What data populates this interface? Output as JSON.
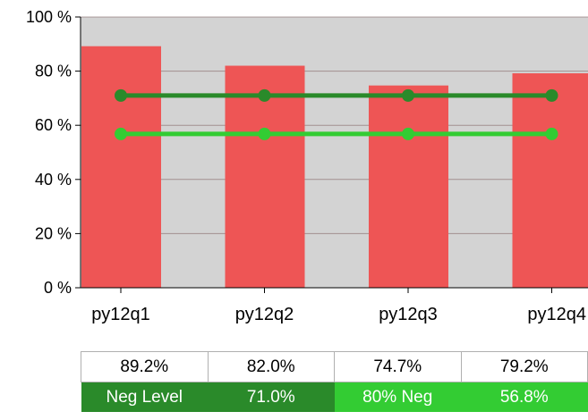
{
  "chart_data": {
    "type": "bar",
    "categories": [
      "py12q1",
      "py12q2",
      "py12q3",
      "py12q4"
    ],
    "values": [
      89.2,
      82.0,
      74.7,
      79.2
    ],
    "ylim": [
      0,
      100
    ],
    "yticks": [
      "0 %",
      "20 %",
      "40 %",
      "60 %",
      "80 %",
      "100 %"
    ],
    "grid": true,
    "lines": [
      {
        "name": "Neg Level",
        "value": 71.0,
        "color": "#2a8a2a"
      },
      {
        "name": "80% Neg",
        "value": 56.8,
        "color": "#33cc33"
      }
    ],
    "bar_color": "#ee5555",
    "plot_background": "#d3d3d3"
  },
  "table": {
    "values": [
      "89.2%",
      "82.0%",
      "74.7%",
      "79.2%"
    ],
    "legend": [
      {
        "label": "Neg Level",
        "value": "71.0%"
      },
      {
        "label": "80% Neg",
        "value": "56.8%"
      }
    ]
  }
}
